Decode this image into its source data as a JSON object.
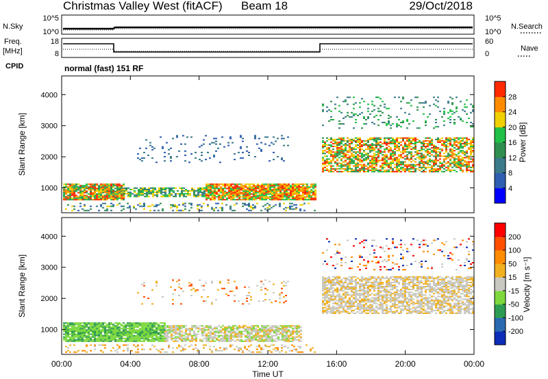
{
  "header": {
    "station": "Christmas Valley West (fitACF)",
    "beam": "Beam 18",
    "date": "29/Oct/2018"
  },
  "noise_panel": {
    "left_label": "N.Sky",
    "right_label": "N.Search",
    "left_ticks": [
      "10^5",
      "10^0"
    ],
    "right_ticks": [
      "10^5",
      "10^0"
    ]
  },
  "freq_panel": {
    "left_label_1": "Freq.",
    "left_label_2": "[MHz]",
    "left_ticks": [
      "18",
      "8"
    ],
    "right_label": "Nave",
    "right_ticks": [
      "60",
      "0"
    ],
    "cpid_label": "CPID",
    "cpid_text": "normal (fast) 151 RF"
  },
  "chart_data": [
    {
      "type": "heatmap",
      "name": "power",
      "ylabel": "Slant Range [km]",
      "yticks": [
        "1000",
        "2000",
        "3000",
        "4000"
      ],
      "ylim": [
        200,
        4600
      ],
      "colorbar_label": "Power [dB]",
      "colorbar_ticks": [
        "4",
        "8",
        "12",
        "16",
        "20",
        "24",
        "28"
      ],
      "colorbar_colors": [
        "#0000ff",
        "#2f5fb0",
        "#3a7a8a",
        "#2f8f4f",
        "#22c046",
        "#f0d000",
        "#ff8c00",
        "#ff2a00"
      ]
    },
    {
      "type": "heatmap",
      "name": "velocity",
      "ylabel": "Slant Range [km]",
      "yticks": [
        "1000",
        "2000",
        "3000",
        "4000"
      ],
      "ylim": [
        200,
        4600
      ],
      "colorbar_label": "Velocity [m s⁻¹]",
      "colorbar_ticks": [
        "200",
        "100",
        "50",
        "15",
        "-15",
        "-50",
        "-100",
        "-200"
      ],
      "colorbar_colors": [
        "#0b2db8",
        "#2a6ab0",
        "#2e9c52",
        "#7cd83c",
        "#c8c8c0",
        "#f0b020",
        "#ff8c00",
        "#ff5000",
        "#ff0000"
      ]
    }
  ],
  "xaxis": {
    "ticks": [
      "00:00",
      "04:00",
      "08:00",
      "12:00",
      "16:00",
      "20:00",
      "00:00"
    ],
    "label": "Time UT"
  }
}
